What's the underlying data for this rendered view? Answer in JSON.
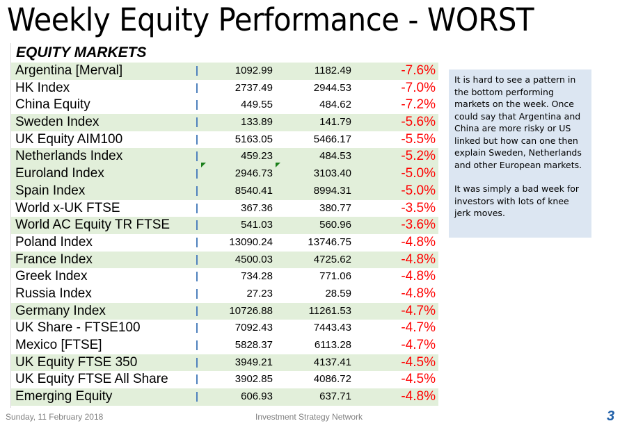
{
  "title": "Weekly Equity Performance - WORST",
  "section": "EQUITY MARKETS",
  "colors": {
    "row_shade": "#e2efda",
    "negative": "#ff0000",
    "note_bg": "#dce6f2",
    "page_number": "#1f5fa8"
  },
  "rows": [
    {
      "name": "Argentina [Merval]",
      "current": "1092.99",
      "previous": "1182.49",
      "change": "-7.6%",
      "shaded": true
    },
    {
      "name": "HK Index",
      "current": "2737.49",
      "previous": "2944.53",
      "change": "-7.0%",
      "shaded": false
    },
    {
      "name": "China Equity",
      "current": "449.55",
      "previous": "484.62",
      "change": "-7.2%",
      "shaded": false
    },
    {
      "name": "Sweden Index",
      "current": "133.89",
      "previous": "141.79",
      "change": "-5.6%",
      "shaded": true
    },
    {
      "name": "UK Equity AIM100",
      "current": "5163.05",
      "previous": "5466.17",
      "change": "-5.5%",
      "shaded": false
    },
    {
      "name": "Netherlands Index",
      "current": "459.23",
      "previous": "484.53",
      "change": "-5.2%",
      "shaded": true
    },
    {
      "name": "Euroland Index",
      "current": "2946.73",
      "previous": "3103.40",
      "change": "-5.0%",
      "shaded": true
    },
    {
      "name": "Spain Index",
      "current": "8540.41",
      "previous": "8994.31",
      "change": "-5.0%",
      "shaded": true
    },
    {
      "name": "World x-UK FTSE",
      "current": "367.36",
      "previous": "380.77",
      "change": "-3.5%",
      "shaded": false
    },
    {
      "name": "World AC Equity TR FTSE",
      "current": "541.03",
      "previous": "560.96",
      "change": "-3.6%",
      "shaded": true
    },
    {
      "name": "Poland Index",
      "current": "13090.24",
      "previous": "13746.75",
      "change": "-4.8%",
      "shaded": false
    },
    {
      "name": "France Index",
      "current": "4500.03",
      "previous": "4725.62",
      "change": "-4.8%",
      "shaded": true
    },
    {
      "name": "Greek Index",
      "current": "734.28",
      "previous": "771.06",
      "change": "-4.8%",
      "shaded": false
    },
    {
      "name": "Russia Index",
      "current": "27.23",
      "previous": "28.59",
      "change": "-4.8%",
      "shaded": false
    },
    {
      "name": "Germany Index",
      "current": "10726.88",
      "previous": "11261.53",
      "change": "-4.7%",
      "shaded": true
    },
    {
      "name": "UK Share - FTSE100",
      "current": "7092.43",
      "previous": "7443.43",
      "change": "-4.7%",
      "shaded": false
    },
    {
      "name": "Mexico [FTSE]",
      "current": "5828.37",
      "previous": "6113.28",
      "change": "-4.7%",
      "shaded": false
    },
    {
      "name": "UK Equity FTSE 350",
      "current": "3949.21",
      "previous": "4137.41",
      "change": "-4.5%",
      "shaded": true
    },
    {
      "name": "UK Equity FTSE All Share",
      "current": "3902.85",
      "previous": "4086.72",
      "change": "-4.5%",
      "shaded": false
    },
    {
      "name": "Emerging Equity",
      "current": "606.93",
      "previous": "637.71",
      "change": "-4.8%",
      "shaded": true
    }
  ],
  "note": {
    "paragraph1": "It is hard to see a pattern in the bottom performing markets on the week.  Once could say that Argentina and China are more risky or US linked but how can one then explain Sweden, Netherlands and other European markets.",
    "paragraph2": "It was simply a bad week for investors with lots of knee jerk moves."
  },
  "footer": {
    "date": "Sunday, 11 February 2018",
    "organization": "Investment Strategy Network",
    "page_number": "3"
  }
}
